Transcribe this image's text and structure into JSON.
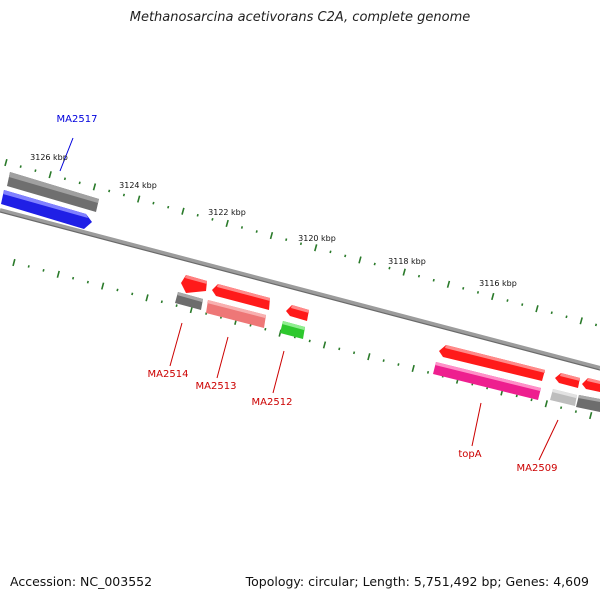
{
  "title": "Methanosarcina acetivorans C2A, complete genome",
  "footer": {
    "accession": "Accession: NC_003552",
    "summary": "Topology: circular; Length: 5,751,492 bp; Genes: 4,609"
  },
  "ticks": [
    "3126 kbp",
    "3124 kbp",
    "3122 kbp",
    "3120 kbp",
    "3118 kbp",
    "3116 kbp"
  ],
  "genes": [
    {
      "id": "MA2517",
      "color": "#0000dd"
    },
    {
      "id": "MA2514",
      "color": "#cc0000"
    },
    {
      "id": "MA2513",
      "color": "#cc0000"
    },
    {
      "id": "MA2512",
      "color": "#cc0000"
    },
    {
      "id": "topA",
      "color": "#cc0000"
    },
    {
      "id": "MA2509",
      "color": "#cc0000"
    }
  ],
  "colors": {
    "backbone": "#7a7a7a",
    "tick": "#2a7a2a",
    "blue_feature": "#1f1fe6",
    "red_feature": "#ff1a1a",
    "pink_feature": "#ee1f8f",
    "salmon_feature": "#ee7777",
    "green_feature": "#2ec82e",
    "gray_feature": "#6d6d6d",
    "lightgray_feature": "#bdbdbd"
  }
}
